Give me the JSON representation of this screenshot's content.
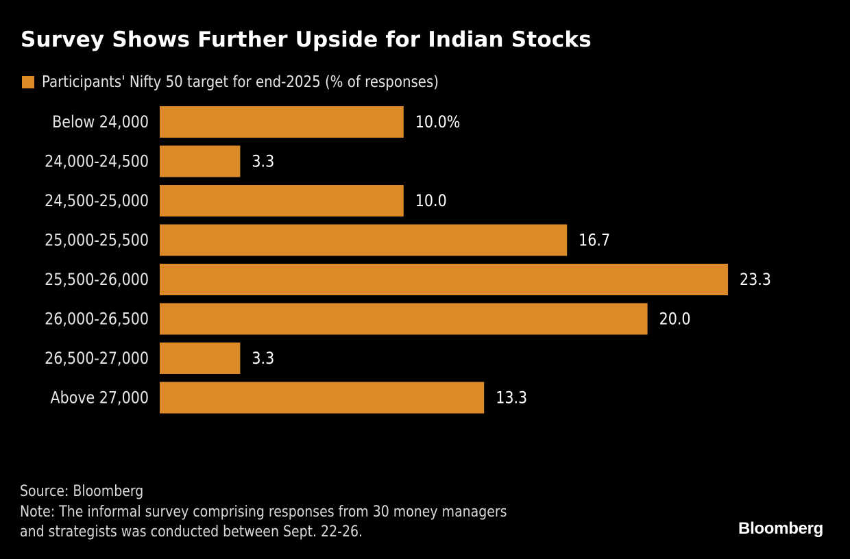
{
  "colors": {
    "background": "#000000",
    "bar": "#DC8A27",
    "text": "#FFFFFF"
  },
  "chart_data": {
    "type": "bar",
    "orientation": "horizontal",
    "title": "Survey Shows Further Upside for Indian Stocks",
    "legend": [
      {
        "label": "Participants' Nifty 50 target for end-2025 (% of responses)",
        "color": "#DC8A27"
      }
    ],
    "legend_position": "top-left",
    "categories": [
      "Below 24,000",
      "24,000-24,500",
      "24,500-25,000",
      "25,000-25,500",
      "25,500-26,000",
      "26,000-26,500",
      "26,500-27,000",
      "Above 27,000"
    ],
    "series": [
      {
        "name": "Participants' Nifty 50 target for end-2025 (% of responses)",
        "values": [
          10.0,
          3.3,
          10.0,
          16.7,
          23.3,
          20.0,
          3.3,
          13.3
        ]
      }
    ],
    "data_labels": [
      "10.0%",
      "3.3",
      "10.0",
      "16.7",
      "23.3",
      "20.0",
      "3.3",
      "13.3"
    ],
    "xlabel": "",
    "ylabel": "",
    "xlim": [
      0,
      23.3
    ],
    "grid": false
  },
  "footer": {
    "source": "Source: Bloomberg",
    "note_line1": "Note: The informal survey comprising responses from 30 money managers",
    "note_line2": "and strategists was conducted between Sept. 22-26."
  },
  "brand": "Bloomberg"
}
